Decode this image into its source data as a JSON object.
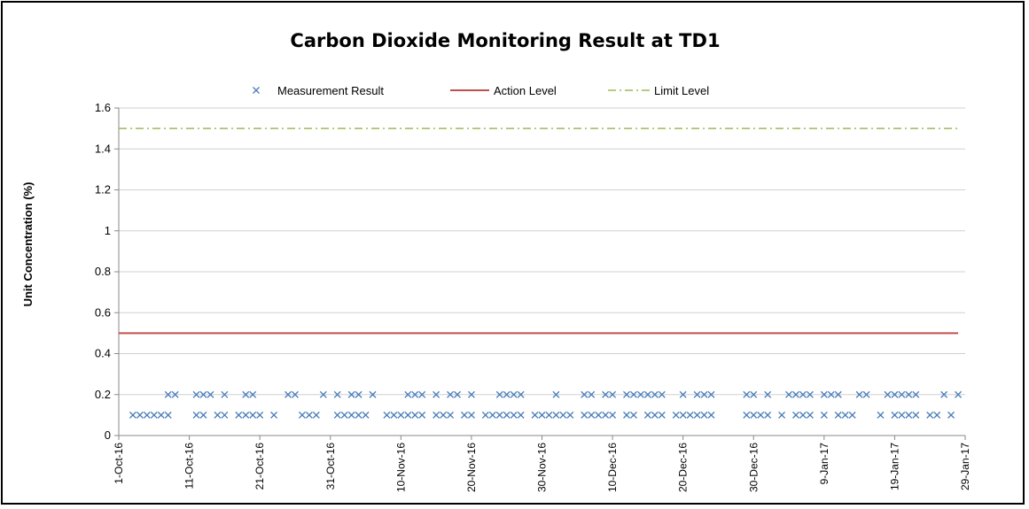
{
  "chart_data": {
    "type": "scatter",
    "title": "Carbon Dioxide Monitoring Result at TD1",
    "xlabel": "",
    "ylabel": "Unit Concentration (%)",
    "ylim": [
      0,
      1.6
    ],
    "yticks": [
      "0",
      "0.2",
      "0.4",
      "0.6",
      "0.8",
      "1",
      "1.2",
      "1.4",
      "1.6"
    ],
    "xlim": [
      "2016-10-01",
      "2017-01-29"
    ],
    "xticks": [
      "1-Oct-16",
      "11-Oct-16",
      "21-Oct-16",
      "31-Oct-16",
      "10-Nov-16",
      "20-Nov-16",
      "30-Nov-16",
      "10-Dec-16",
      "20-Dec-16",
      "30-Dec-16",
      "9-Jan-17",
      "19-Jan-17",
      "29-Jan-17"
    ],
    "grid": "horizontal",
    "legend_position": "top",
    "series": [
      {
        "name": "Measurement Result",
        "marker": "x",
        "color": "#4a7ebb",
        "points": [
          [
            "2016-10-03",
            0.1
          ],
          [
            "2016-10-04",
            0.1
          ],
          [
            "2016-10-05",
            0.1
          ],
          [
            "2016-10-06",
            0.1
          ],
          [
            "2016-10-07",
            0.1
          ],
          [
            "2016-10-08",
            0.1
          ],
          [
            "2016-10-08",
            0.2
          ],
          [
            "2016-10-09",
            0.2
          ],
          [
            "2016-10-12",
            0.2
          ],
          [
            "2016-10-12",
            0.1
          ],
          [
            "2016-10-13",
            0.2
          ],
          [
            "2016-10-14",
            0.2
          ],
          [
            "2016-10-13",
            0.1
          ],
          [
            "2016-10-15",
            0.1
          ],
          [
            "2016-10-16",
            0.1
          ],
          [
            "2016-10-16",
            0.2
          ],
          [
            "2016-10-18",
            0.1
          ],
          [
            "2016-10-19",
            0.1
          ],
          [
            "2016-10-19",
            0.2
          ],
          [
            "2016-10-20",
            0.1
          ],
          [
            "2016-10-20",
            0.2
          ],
          [
            "2016-10-21",
            0.1
          ],
          [
            "2016-10-23",
            0.1
          ],
          [
            "2016-10-25",
            0.2
          ],
          [
            "2016-10-26",
            0.2
          ],
          [
            "2016-10-27",
            0.1
          ],
          [
            "2016-10-28",
            0.1
          ],
          [
            "2016-10-29",
            0.1
          ],
          [
            "2016-10-30",
            0.2
          ],
          [
            "2016-11-01",
            0.2
          ],
          [
            "2016-11-01",
            0.1
          ],
          [
            "2016-11-02",
            0.1
          ],
          [
            "2016-11-03",
            0.1
          ],
          [
            "2016-11-03",
            0.2
          ],
          [
            "2016-11-04",
            0.1
          ],
          [
            "2016-11-04",
            0.2
          ],
          [
            "2016-11-05",
            0.1
          ],
          [
            "2016-11-06",
            0.2
          ],
          [
            "2016-11-08",
            0.1
          ],
          [
            "2016-11-09",
            0.1
          ],
          [
            "2016-11-10",
            0.1
          ],
          [
            "2016-11-11",
            0.1
          ],
          [
            "2016-11-11",
            0.2
          ],
          [
            "2016-11-12",
            0.1
          ],
          [
            "2016-11-12",
            0.2
          ],
          [
            "2016-11-13",
            0.1
          ],
          [
            "2016-11-13",
            0.2
          ],
          [
            "2016-11-15",
            0.2
          ],
          [
            "2016-11-15",
            0.1
          ],
          [
            "2016-11-16",
            0.1
          ],
          [
            "2016-11-17",
            0.1
          ],
          [
            "2016-11-17",
            0.2
          ],
          [
            "2016-11-18",
            0.2
          ],
          [
            "2016-11-19",
            0.1
          ],
          [
            "2016-11-20",
            0.1
          ],
          [
            "2016-11-20",
            0.2
          ],
          [
            "2016-11-22",
            0.1
          ],
          [
            "2016-11-23",
            0.1
          ],
          [
            "2016-11-24",
            0.2
          ],
          [
            "2016-11-24",
            0.1
          ],
          [
            "2016-11-25",
            0.2
          ],
          [
            "2016-11-25",
            0.1
          ],
          [
            "2016-11-26",
            0.2
          ],
          [
            "2016-11-26",
            0.1
          ],
          [
            "2016-11-27",
            0.2
          ],
          [
            "2016-11-27",
            0.1
          ],
          [
            "2016-11-29",
            0.1
          ],
          [
            "2016-11-30",
            0.1
          ],
          [
            "2016-12-01",
            0.1
          ],
          [
            "2016-12-02",
            0.1
          ],
          [
            "2016-12-02",
            0.2
          ],
          [
            "2016-12-03",
            0.1
          ],
          [
            "2016-12-04",
            0.1
          ],
          [
            "2016-12-06",
            0.1
          ],
          [
            "2016-12-06",
            0.2
          ],
          [
            "2016-12-07",
            0.1
          ],
          [
            "2016-12-07",
            0.2
          ],
          [
            "2016-12-08",
            0.1
          ],
          [
            "2016-12-09",
            0.1
          ],
          [
            "2016-12-09",
            0.2
          ],
          [
            "2016-12-10",
            0.1
          ],
          [
            "2016-12-10",
            0.2
          ],
          [
            "2016-12-12",
            0.2
          ],
          [
            "2016-12-12",
            0.1
          ],
          [
            "2016-12-13",
            0.2
          ],
          [
            "2016-12-13",
            0.1
          ],
          [
            "2016-12-14",
            0.2
          ],
          [
            "2016-12-15",
            0.2
          ],
          [
            "2016-12-15",
            0.1
          ],
          [
            "2016-12-16",
            0.2
          ],
          [
            "2016-12-16",
            0.1
          ],
          [
            "2016-12-17",
            0.2
          ],
          [
            "2016-12-17",
            0.1
          ],
          [
            "2016-12-19",
            0.1
          ],
          [
            "2016-12-20",
            0.1
          ],
          [
            "2016-12-20",
            0.2
          ],
          [
            "2016-12-21",
            0.1
          ],
          [
            "2016-12-22",
            0.1
          ],
          [
            "2016-12-22",
            0.2
          ],
          [
            "2016-12-23",
            0.1
          ],
          [
            "2016-12-23",
            0.2
          ],
          [
            "2016-12-24",
            0.1
          ],
          [
            "2016-12-24",
            0.2
          ],
          [
            "2016-12-29",
            0.1
          ],
          [
            "2016-12-29",
            0.2
          ],
          [
            "2016-12-30",
            0.1
          ],
          [
            "2016-12-30",
            0.2
          ],
          [
            "2016-12-31",
            0.1
          ],
          [
            "2017-01-01",
            0.2
          ],
          [
            "2017-01-01",
            0.1
          ],
          [
            "2017-01-03",
            0.1
          ],
          [
            "2017-01-04",
            0.2
          ],
          [
            "2017-01-05",
            0.1
          ],
          [
            "2017-01-05",
            0.2
          ],
          [
            "2017-01-06",
            0.1
          ],
          [
            "2017-01-06",
            0.2
          ],
          [
            "2017-01-07",
            0.1
          ],
          [
            "2017-01-07",
            0.2
          ],
          [
            "2017-01-09",
            0.1
          ],
          [
            "2017-01-09",
            0.2
          ],
          [
            "2017-01-10",
            0.2
          ],
          [
            "2017-01-11",
            0.1
          ],
          [
            "2017-01-11",
            0.2
          ],
          [
            "2017-01-12",
            0.1
          ],
          [
            "2017-01-13",
            0.1
          ],
          [
            "2017-01-14",
            0.2
          ],
          [
            "2017-01-15",
            0.2
          ],
          [
            "2017-01-17",
            0.1
          ],
          [
            "2017-01-18",
            0.2
          ],
          [
            "2017-01-19",
            0.2
          ],
          [
            "2017-01-19",
            0.1
          ],
          [
            "2017-01-20",
            0.2
          ],
          [
            "2017-01-20",
            0.1
          ],
          [
            "2017-01-21",
            0.2
          ],
          [
            "2017-01-21",
            0.1
          ],
          [
            "2017-01-22",
            0.2
          ],
          [
            "2017-01-22",
            0.1
          ],
          [
            "2017-01-24",
            0.1
          ],
          [
            "2017-01-25",
            0.1
          ],
          [
            "2017-01-26",
            0.2
          ],
          [
            "2017-01-27",
            0.1
          ],
          [
            "2017-01-28",
            0.2
          ]
        ]
      },
      {
        "name": "Action Level",
        "line": "solid",
        "color": "#c0504d",
        "points": [
          [
            "2016-10-01",
            0.5
          ],
          [
            "2017-01-28",
            0.5
          ]
        ]
      },
      {
        "name": "Limit Level",
        "line": "dash-dot",
        "color": "#9bbb59",
        "points": [
          [
            "2016-10-01",
            1.5
          ],
          [
            "2017-01-28",
            1.5
          ]
        ]
      }
    ]
  }
}
